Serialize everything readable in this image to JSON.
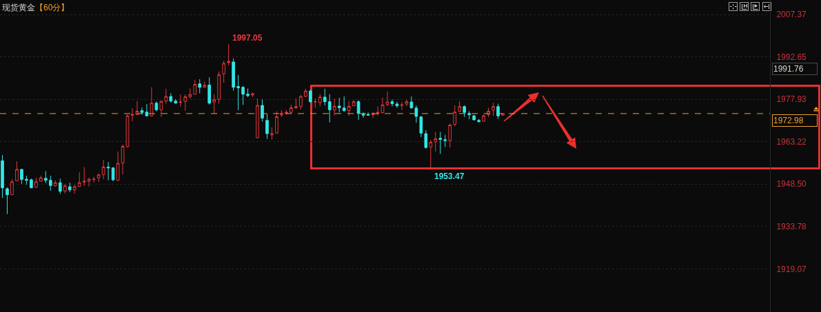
{
  "chart_data": {
    "type": "candlestick",
    "title": "现货黄金",
    "subtitle": "【60分】",
    "categories": [
      null,
      null,
      null,
      null,
      null,
      null,
      null,
      null,
      null,
      null,
      null,
      null,
      null,
      null,
      null,
      null,
      null,
      null,
      null,
      null,
      null,
      null,
      null,
      null,
      null,
      null,
      null,
      null,
      null,
      null,
      null,
      null,
      null,
      null,
      null,
      null,
      null,
      null,
      null,
      null,
      null,
      null,
      null,
      null,
      null,
      null,
      null,
      null,
      null,
      null,
      null,
      null,
      null,
      null,
      null,
      null,
      null,
      null,
      null,
      null,
      null,
      null,
      null,
      null,
      null,
      null,
      null,
      null,
      null,
      null,
      null,
      null,
      null,
      null,
      null,
      null,
      null,
      null,
      null,
      null,
      null,
      null,
      null,
      null,
      null,
      null,
      null,
      null,
      null,
      null,
      null,
      null,
      null,
      null,
      null,
      null,
      null,
      null,
      null,
      null,
      null,
      null,
      null,
      null,
      null,
      null,
      null,
      null,
      null,
      null,
      null,
      null,
      null,
      null,
      null,
      null,
      null,
      null,
      null,
      null,
      null,
      null,
      null,
      null,
      null,
      null,
      null,
      null,
      null,
      null,
      null,
      null,
      null,
      null,
      null,
      null,
      null,
      null,
      null,
      null,
      null,
      null,
      null,
      null,
      null,
      null,
      null,
      null,
      null,
      null,
      null,
      null,
      null,
      null,
      null,
      null,
      null,
      null,
      null,
      null
    ],
    "ohlc": [
      [
        1956.6,
        1958.6,
        1943.7,
        1947.2
      ],
      [
        1946.9,
        1947.4,
        1938.1,
        1944.8
      ],
      [
        1944.8,
        1950.2,
        1944.7,
        1949.3
      ],
      [
        1949.6,
        1956.4,
        1949.6,
        1953.6
      ],
      [
        1953.6,
        1953.8,
        1948.6,
        1950.1
      ],
      [
        1950.2,
        1951.4,
        1948.3,
        1949.8
      ],
      [
        1950.0,
        1950.4,
        1947.1,
        1947.2
      ],
      [
        1947.4,
        1950.7,
        1947.2,
        1949.3
      ],
      [
        1949.5,
        1951.4,
        1949.3,
        1950.7
      ],
      [
        1950.5,
        1953.0,
        1948.8,
        1949.8
      ],
      [
        1949.8,
        1951.4,
        1946.2,
        1948.0
      ],
      [
        1947.9,
        1949.8,
        1947.6,
        1949.0
      ],
      [
        1949.0,
        1950.4,
        1945.1,
        1946.0
      ],
      [
        1946.1,
        1948.6,
        1945.2,
        1947.9
      ],
      [
        1947.6,
        1949.0,
        1945.7,
        1946.5
      ],
      [
        1946.5,
        1948.3,
        1945.2,
        1947.6
      ],
      [
        1947.7,
        1952.6,
        1947.6,
        1949.0
      ],
      [
        1949.2,
        1954.4,
        1947.9,
        1949.5
      ],
      [
        1949.5,
        1950.7,
        1947.7,
        1950.2
      ],
      [
        1950.1,
        1951.0,
        1949.0,
        1950.2
      ],
      [
        1950.7,
        1952.2,
        1949.3,
        1951.7
      ],
      [
        1951.8,
        1956.9,
        1950.2,
        1954.4
      ],
      [
        1954.4,
        1956.2,
        1949.8,
        1954.1
      ],
      [
        1954.1,
        1954.4,
        1949.5,
        1950.0
      ],
      [
        1949.8,
        1959.8,
        1949.6,
        1955.7
      ],
      [
        1955.8,
        1962.2,
        1951.8,
        1961.6
      ],
      [
        1961.5,
        1972.7,
        1961.2,
        1972.2
      ],
      [
        1972.4,
        1974.8,
        1970.3,
        1972.7
      ],
      [
        1972.6,
        1977.3,
        1972.5,
        1973.8
      ],
      [
        1974.0,
        1975.1,
        1972.6,
        1973.4
      ],
      [
        1973.5,
        1976.3,
        1971.9,
        1972.2
      ],
      [
        1972.2,
        1982.1,
        1971.9,
        1976.6
      ],
      [
        1976.6,
        1977.2,
        1973.8,
        1974.3
      ],
      [
        1974.3,
        1977.5,
        1971.8,
        1977.2
      ],
      [
        1977.3,
        1981.6,
        1976.4,
        1978.9
      ],
      [
        1978.9,
        1980.1,
        1976.8,
        1977.3
      ],
      [
        1977.3,
        1978.0,
        1976.4,
        1976.6
      ],
      [
        1976.8,
        1979.6,
        1975.4,
        1977.0
      ],
      [
        1977.2,
        1979.6,
        1974.0,
        1978.8
      ],
      [
        1978.8,
        1981.7,
        1978.2,
        1979.6
      ],
      [
        1979.7,
        1984.7,
        1979.6,
        1983.1
      ],
      [
        1983.3,
        1984.9,
        1980.0,
        1982.1
      ],
      [
        1982.1,
        1984.1,
        1982.0,
        1982.8
      ],
      [
        1982.9,
        1985.6,
        1976.1,
        1976.6
      ],
      [
        1977.0,
        1979.7,
        1973.0,
        1977.8
      ],
      [
        1977.9,
        1987.6,
        1976.4,
        1986.5
      ],
      [
        1986.8,
        1991.3,
        1983.7,
        1990.4
      ],
      [
        1990.7,
        1997.05,
        1989.7,
        1991.1
      ],
      [
        1990.9,
        1992.1,
        1980.9,
        1982.1
      ],
      [
        1982.4,
        1986.4,
        1974.2,
        1981.9
      ],
      [
        1982.1,
        1982.5,
        1976.0,
        1979.7
      ],
      [
        1979.7,
        1981.7,
        1978.7,
        1979.2
      ],
      [
        1979.4,
        1980.3,
        1978.7,
        1979.9
      ],
      [
        1964.6,
        1978.2,
        1964.4,
        1975.8
      ],
      [
        1975.8,
        1977.9,
        1970.2,
        1971.4
      ],
      [
        1970.6,
        1973.0,
        1964.2,
        1966.0
      ],
      [
        1965.6,
        1968.2,
        1964.0,
        1966.0
      ],
      [
        1966.2,
        1973.8,
        1966.0,
        1971.9
      ],
      [
        1972.5,
        1974.2,
        1971.8,
        1973.1
      ],
      [
        1973.1,
        1974.2,
        1972.6,
        1973.4
      ],
      [
        1973.4,
        1976.1,
        1972.8,
        1975.0
      ],
      [
        1975.0,
        1978.2,
        1974.6,
        1975.4
      ],
      [
        1975.4,
        1979.4,
        1974.4,
        1978.9
      ],
      [
        1978.9,
        1981.6,
        1978.7,
        1980.8
      ],
      [
        1980.8,
        1981.3,
        1976.6,
        1977.1
      ],
      [
        1977.0,
        1978.2,
        1975.0,
        1977.1
      ],
      [
        1976.8,
        1979.7,
        1975.5,
        1978.7
      ],
      [
        1978.7,
        1981.6,
        1975.8,
        1977.1
      ],
      [
        1977.1,
        1979.7,
        1969.9,
        1974.3
      ],
      [
        1974.2,
        1978.2,
        1972.3,
        1975.5
      ],
      [
        1975.6,
        1978.5,
        1973.4,
        1975.0
      ],
      [
        1974.9,
        1978.9,
        1973.6,
        1974.0
      ],
      [
        1974.0,
        1977.3,
        1972.2,
        1975.5
      ],
      [
        1975.7,
        1977.6,
        1975.5,
        1977.1
      ],
      [
        1977.1,
        1977.6,
        1970.8,
        1973.0
      ],
      [
        1972.8,
        1973.4,
        1971.5,
        1972.4
      ],
      [
        1972.7,
        1973.4,
        1972.3,
        1972.4
      ],
      [
        1972.6,
        1973.4,
        1971.4,
        1973.1
      ],
      [
        1973.0,
        1975.5,
        1972.2,
        1973.4
      ],
      [
        1973.3,
        1978.5,
        1973.0,
        1976.0
      ],
      [
        1976.1,
        1980.6,
        1975.5,
        1977.0
      ],
      [
        1977.1,
        1977.9,
        1975.5,
        1976.4
      ],
      [
        1976.3,
        1977.1,
        1975.0,
        1975.7
      ],
      [
        1975.8,
        1977.0,
        1974.2,
        1976.0
      ],
      [
        1976.3,
        1977.8,
        1975.5,
        1977.1
      ],
      [
        1977.0,
        1978.9,
        1974.6,
        1975.0
      ],
      [
        1974.9,
        1975.8,
        1969.8,
        1972.0
      ],
      [
        1971.8,
        1972.2,
        1964.8,
        1966.2
      ],
      [
        1966.0,
        1967.2,
        1960.8,
        1961.2
      ],
      [
        1961.4,
        1963.8,
        1953.47,
        1963.0
      ],
      [
        1963.2,
        1966.6,
        1959.8,
        1964.2
      ],
      [
        1964.4,
        1966.6,
        1959.0,
        1964.0
      ],
      [
        1963.9,
        1965.6,
        1961.4,
        1963.6
      ],
      [
        1963.6,
        1969.5,
        1961.2,
        1969.0
      ],
      [
        1969.2,
        1975.8,
        1968.6,
        1973.5
      ],
      [
        1973.8,
        1977.3,
        1973.5,
        1975.4
      ],
      [
        1975.4,
        1975.8,
        1971.8,
        1973.4
      ],
      [
        1973.0,
        1973.8,
        1971.0,
        1972.6
      ],
      [
        1972.2,
        1972.6,
        1970.6,
        1970.8
      ],
      [
        1970.6,
        1971.1,
        1969.8,
        1970.2
      ],
      [
        1970.3,
        1972.7,
        1970.2,
        1972.2
      ],
      [
        1972.6,
        1975.0,
        1971.8,
        1973.8
      ],
      [
        1974.2,
        1976.7,
        1972.2,
        1975.4
      ],
      [
        1975.4,
        1976.4,
        1971.1,
        1972.2
      ],
      [
        1972.4,
        1973.2,
        1972.2,
        1972.98
      ],
      null,
      null,
      null,
      null,
      null,
      null,
      null,
      null,
      null,
      null,
      null,
      null,
      null,
      null,
      null,
      null,
      null,
      null,
      null,
      null,
      null,
      null,
      null,
      null,
      null,
      null,
      null,
      null,
      null,
      null,
      null,
      null,
      null,
      null,
      null,
      null,
      null,
      null,
      null,
      null,
      null,
      null,
      null,
      null,
      null,
      null,
      null,
      null,
      null,
      null,
      null,
      null,
      null,
      null,
      null
    ],
    "colors": [
      "#33e6e6",
      "#33e6e6",
      "#e8383d",
      "#e8383d",
      "#33e6e6",
      "#33e6e6",
      "#33e6e6",
      "#e8383d",
      "#e8383d",
      "#33e6e6",
      "#33e6e6",
      "#e8383d",
      "#33e6e6",
      "#e8383d",
      "#33e6e6",
      "#e8383d",
      "#e8383d",
      "#e8383d",
      "#e8383d",
      "#e8383d",
      "#e8383d",
      "#e8383d",
      "#33e6e6",
      "#33e6e6",
      "#e8383d",
      "#e8383d",
      "#e8383d",
      "#e8383d",
      "#e8383d",
      "#33e6e6",
      "#33e6e6",
      "#e8383d",
      "#33e6e6",
      "#e8383d",
      "#e8383d",
      "#33e6e6",
      "#33e6e6",
      "#e8383d",
      "#e8383d",
      "#e8383d",
      "#e8383d",
      "#33e6e6",
      "#e8383d",
      "#33e6e6",
      "#e8383d",
      "#e8383d",
      "#e8383d",
      "#e8383d",
      "#33e6e6",
      "#33e6e6",
      "#33e6e6",
      "#33e6e6",
      "#e8383d",
      "#e8383d",
      "#33e6e6",
      "#33e6e6",
      "#e8383d",
      "#e8383d",
      "#e8383d",
      "#e8383d",
      "#e8383d",
      "#e8383d",
      "#e8383d",
      "#e8383d",
      "#33e6e6",
      "#e8383d",
      "#e8383d",
      "#33e6e6",
      "#33e6e6",
      "#e8383d",
      "#33e6e6",
      "#33e6e6",
      "#e8383d",
      "#e8383d",
      "#33e6e6",
      "#33e6e6",
      "#33e6e6",
      "#e8383d",
      "#e8383d",
      "#e8383d",
      "#e8383d",
      "#33e6e6",
      "#33e6e6",
      "#e8383d",
      "#e8383d",
      "#33e6e6",
      "#33e6e6",
      "#33e6e6",
      "#33e6e6",
      "#e8383d",
      "#e8383d",
      "#33e6e6",
      "#33e6e6",
      "#e8383d",
      "#e8383d",
      "#e8383d",
      "#33e6e6",
      "#33e6e6",
      "#33e6e6",
      "#33e6e6",
      "#e8383d",
      "#e8383d",
      "#e8383d",
      "#33e6e6",
      "#e8383d",
      null,
      null,
      null,
      null,
      null,
      null,
      null,
      null,
      null,
      null,
      null,
      null,
      null,
      null,
      null,
      null,
      null,
      null,
      null,
      null,
      null,
      null,
      null,
      null,
      null,
      null,
      null,
      null,
      null,
      null,
      null,
      null,
      null,
      null,
      null,
      null,
      null,
      null,
      null,
      null,
      null,
      null,
      null,
      null,
      null,
      null,
      null,
      null,
      null,
      null,
      null,
      null,
      null,
      null,
      null
    ],
    "ylim": [
      1904.1,
      2012.4
    ],
    "yticks": [
      2007.37,
      1992.65,
      1977.93,
      1963.22,
      {
        "value": 1948.5,
        "label": "1948.50"
      },
      1933.78,
      1919.07
    ],
    "grid": "y",
    "tick_labels": "y",
    "ref_lines": [
      {
        "axis": "y",
        "value": 1972.98,
        "label": "1972.98",
        "color": "#f0a030",
        "line_style": "dashed"
      }
    ],
    "annotations": [
      "1997.05",
      "1953.47",
      "1991.76"
    ]
  }
}
